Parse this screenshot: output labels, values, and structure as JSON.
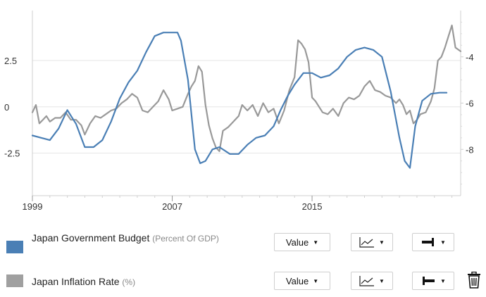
{
  "chart_data": {
    "type": "line",
    "x_start": 1999,
    "x_end": 2023.5,
    "x_ticks": [
      1999,
      2007,
      2015
    ],
    "left_axis": {
      "ylim": [
        -4.8,
        5.2
      ],
      "ticks": [
        2.5,
        0,
        -2.5
      ],
      "tick_labels": [
        "2.5",
        "0",
        "-2.5"
      ]
    },
    "right_axis": {
      "ylim": [
        -10,
        -2
      ],
      "ticks": [
        -4,
        -6,
        -8
      ],
      "tick_labels": [
        "-4",
        "-6",
        "-8"
      ]
    },
    "series": [
      {
        "name": "Japan Government Budget",
        "unit": "Percent Of GDP",
        "axis": "right",
        "color": "#4a7fb5",
        "x": [
          1999.0,
          1999.5,
          2000.0,
          2000.5,
          2001.0,
          2001.5,
          2002.0,
          2002.5,
          2003.0,
          2003.5,
          2004.0,
          2004.5,
          2005.0,
          2005.5,
          2006.0,
          2006.5,
          2006.8,
          2007.3,
          2007.5,
          2007.9,
          2008.3,
          2008.6,
          2008.9,
          2009.3,
          2009.7,
          2010.3,
          2010.8,
          2011.3,
          2011.8,
          2012.3,
          2012.8,
          2013.2,
          2013.6,
          2014.0,
          2014.5,
          2015.0,
          2015.5,
          2016.0,
          2016.5,
          2017.0,
          2017.5,
          2018.0,
          2018.5,
          2019.0,
          2019.5,
          2020.0,
          2020.3,
          2020.6,
          2020.9,
          2021.3,
          2021.8,
          2022.3,
          2022.7
        ],
        "values": [
          -7.4,
          -7.5,
          -7.6,
          -7.1,
          -6.3,
          -6.9,
          -7.9,
          -7.9,
          -7.6,
          -6.8,
          -5.8,
          -5.1,
          -4.6,
          -3.8,
          -3.1,
          -2.95,
          -2.95,
          -2.95,
          -3.3,
          -5.0,
          -8.0,
          -8.6,
          -8.5,
          -8.0,
          -7.9,
          -8.2,
          -8.2,
          -7.8,
          -7.5,
          -7.4,
          -7.0,
          -6.3,
          -5.7,
          -5.2,
          -4.7,
          -4.7,
          -4.9,
          -4.8,
          -4.5,
          -4.0,
          -3.7,
          -3.6,
          -3.7,
          -4.0,
          -5.5,
          -7.5,
          -8.5,
          -8.8,
          -7.0,
          -5.9,
          -5.6,
          -5.55,
          -5.55
        ]
      },
      {
        "name": "Japan Inflation Rate",
        "unit": "%",
        "axis": "left",
        "color": "#999999",
        "x": [
          1999.0,
          1999.2,
          1999.4,
          1999.6,
          1999.8,
          2000.0,
          2000.3,
          2000.6,
          2000.9,
          2001.2,
          2001.5,
          2001.8,
          2002.0,
          2002.3,
          2002.6,
          2002.9,
          2003.2,
          2003.5,
          2003.8,
          2004.1,
          2004.4,
          2004.7,
          2005.0,
          2005.3,
          2005.6,
          2005.9,
          2006.2,
          2006.5,
          2006.8,
          2007.0,
          2007.3,
          2007.6,
          2007.9,
          2008.1,
          2008.3,
          2008.5,
          2008.7,
          2008.9,
          2009.1,
          2009.3,
          2009.5,
          2009.7,
          2009.9,
          2010.2,
          2010.5,
          2010.8,
          2011.0,
          2011.3,
          2011.6,
          2011.9,
          2012.2,
          2012.5,
          2012.8,
          2013.1,
          2013.4,
          2013.7,
          2014.0,
          2014.2,
          2014.4,
          2014.6,
          2014.8,
          2015.0,
          2015.2,
          2015.4,
          2015.6,
          2015.9,
          2016.2,
          2016.5,
          2016.8,
          2017.1,
          2017.4,
          2017.7,
          2018.0,
          2018.3,
          2018.6,
          2018.9,
          2019.2,
          2019.5,
          2019.8,
          2020.0,
          2020.2,
          2020.4,
          2020.6,
          2020.8,
          2021.0,
          2021.2,
          2021.5,
          2021.8,
          2022.0,
          2022.2,
          2022.4,
          2022.6,
          2022.8,
          2023.0,
          2023.2,
          2023.5
        ],
        "values": [
          -0.3,
          0.1,
          -0.9,
          -0.7,
          -0.5,
          -0.8,
          -0.6,
          -0.6,
          -0.3,
          -0.7,
          -0.7,
          -1.0,
          -1.5,
          -0.9,
          -0.5,
          -0.6,
          -0.4,
          -0.2,
          -0.1,
          0.2,
          0.4,
          0.7,
          0.5,
          -0.2,
          -0.3,
          0.0,
          0.3,
          0.9,
          0.4,
          -0.2,
          -0.1,
          0.0,
          0.7,
          1.1,
          1.4,
          2.2,
          1.9,
          0.1,
          -1.0,
          -1.7,
          -2.2,
          -2.4,
          -1.3,
          -1.1,
          -0.8,
          -0.5,
          0.1,
          -0.2,
          0.1,
          -0.5,
          0.2,
          -0.3,
          -0.1,
          -0.9,
          -0.2,
          0.9,
          1.6,
          3.6,
          3.4,
          3.1,
          2.4,
          0.5,
          0.3,
          0.0,
          -0.3,
          -0.4,
          -0.1,
          -0.5,
          0.2,
          0.5,
          0.4,
          0.6,
          1.1,
          1.4,
          0.9,
          0.8,
          0.6,
          0.5,
          0.2,
          0.4,
          0.1,
          -0.4,
          -0.2,
          -0.9,
          -0.7,
          -0.4,
          -0.3,
          0.3,
          1.0,
          2.5,
          2.7,
          3.2,
          3.8,
          4.4,
          3.2,
          3.0
        ]
      }
    ]
  },
  "legend": {
    "rows": [
      {
        "name": "Japan Government Budget",
        "unit": "(Percent Of GDP)",
        "color": "#4a7fb5",
        "value_label": "Value"
      },
      {
        "name": "Japan Inflation Rate",
        "unit": "(%)",
        "color": "#a0a0a0",
        "value_label": "Value"
      }
    ]
  }
}
